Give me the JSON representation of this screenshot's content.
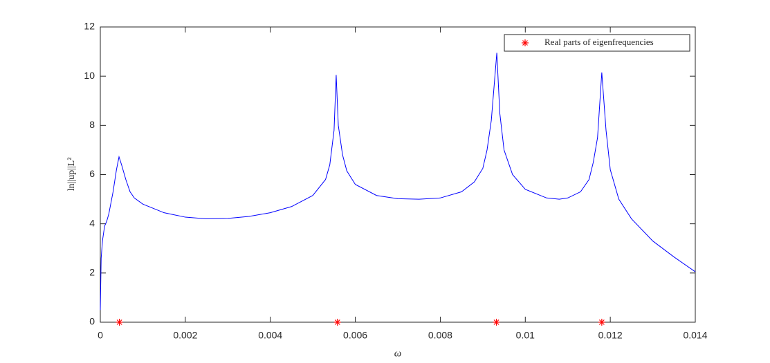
{
  "chart_data": {
    "type": "line",
    "xlabel": "ω",
    "ylabel": "ln||up||L²",
    "xlim": [
      0,
      0.014
    ],
    "ylim": [
      0,
      12
    ],
    "xticks": [
      0,
      0.002,
      0.004,
      0.006,
      0.008,
      0.01,
      0.012,
      0.014
    ],
    "yticks": [
      0,
      2,
      4,
      6,
      8,
      10,
      12
    ],
    "grid": false,
    "legend": "upper right",
    "series": [
      {
        "type": "line",
        "color": "#0000ff",
        "x": [
          0,
          2e-05,
          5e-05,
          0.0001,
          0.00015,
          0.0002,
          0.0003,
          0.00038,
          0.00044,
          0.0005,
          0.0006,
          0.0007,
          0.0008,
          0.001,
          0.0015,
          0.002,
          0.0025,
          0.003,
          0.0035,
          0.004,
          0.0045,
          0.005,
          0.0053,
          0.0054,
          0.0055,
          0.00555,
          0.0056,
          0.0057,
          0.0058,
          0.006,
          0.0065,
          0.007,
          0.0075,
          0.008,
          0.0085,
          0.0088,
          0.009,
          0.0091,
          0.0092,
          0.00933,
          0.0094,
          0.0095,
          0.0097,
          0.01,
          0.0105,
          0.0108,
          0.011,
          0.0113,
          0.0115,
          0.0116,
          0.0117,
          0.0118,
          0.0119,
          0.012,
          0.0122,
          0.0125,
          0.013,
          0.0135,
          0.014
        ],
        "values": [
          0.5,
          2.6,
          3.3,
          3.9,
          4.1,
          4.4,
          5.3,
          6.2,
          6.72,
          6.4,
          5.8,
          5.3,
          5.05,
          4.8,
          4.45,
          4.27,
          4.2,
          4.22,
          4.3,
          4.45,
          4.7,
          5.15,
          5.8,
          6.4,
          7.8,
          10.05,
          8.0,
          6.8,
          6.15,
          5.6,
          5.15,
          5.02,
          5.0,
          5.05,
          5.3,
          5.7,
          6.25,
          7.0,
          8.2,
          10.95,
          8.5,
          7.0,
          6.0,
          5.4,
          5.05,
          5.0,
          5.05,
          5.3,
          5.8,
          6.5,
          7.5,
          10.15,
          7.8,
          6.2,
          5.0,
          4.2,
          3.3,
          2.65,
          2.05
        ]
      },
      {
        "type": "scatter",
        "name": "Real parts of eigenfrequencies",
        "color": "#ff0000",
        "x": [
          0.00045,
          0.00558,
          0.00932,
          0.0118
        ],
        "values": [
          0,
          0,
          0,
          0
        ]
      }
    ]
  }
}
